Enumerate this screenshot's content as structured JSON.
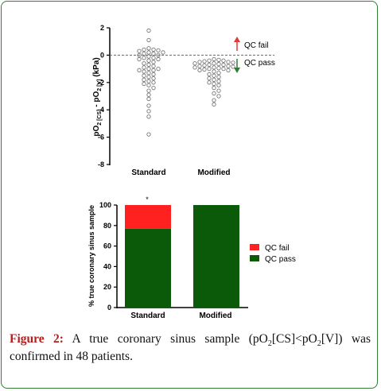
{
  "colors": {
    "frame_border": "#2e7d32",
    "qc_fail": "#ff2020",
    "qc_pass": "#0a5a0a",
    "arrow_up": "#e53935",
    "arrow_down": "#2e7d32",
    "figure_label": "#b71c1c"
  },
  "caption": {
    "label": "Figure 2:",
    "text_1": "A true coronary sinus sample (pO",
    "sub_1": "2",
    "text_2": "[CS]<pO",
    "sub_2": "2",
    "text_3": "[V]) was confirmed in 48 patients."
  },
  "chart_data": [
    {
      "type": "scatter",
      "ylabel": {
        "main_1": "pO",
        "sub_1": "2 [CS]",
        "main_2": " - pO",
        "sub_2": "2 [V]",
        "main_3": " (kPa)"
      },
      "ylim": [
        -8,
        2
      ],
      "yticks": [
        "2",
        "0",
        "-2",
        "-4",
        "-6",
        "-8"
      ],
      "categories": [
        "Standard",
        "Modified"
      ],
      "reference_line": {
        "y": 0,
        "style": "dashed"
      },
      "annotations": {
        "above": "QC fail",
        "below": "QC pass"
      },
      "series": [
        {
          "category": "Standard",
          "values": [
            1.8,
            1.1,
            0.5,
            0.4,
            0.4,
            0.35,
            0.3,
            0.2,
            0.2,
            0.1,
            0.1,
            0.0,
            0.0,
            -0.1,
            -0.2,
            -0.2,
            -0.3,
            -0.3,
            -0.4,
            -0.5,
            -0.6,
            -0.7,
            -0.8,
            -0.9,
            -1.0,
            -1.0,
            -1.1,
            -1.1,
            -1.2,
            -1.3,
            -1.4,
            -1.5,
            -1.6,
            -1.7,
            -1.8,
            -1.9,
            -2.0,
            -2.1,
            -2.2,
            -2.4,
            -2.6,
            -2.9,
            -3.2,
            -3.7,
            -4.1,
            -4.5,
            -5.8
          ]
        },
        {
          "category": "Modified",
          "values": [
            -0.3,
            -0.35,
            -0.4,
            -0.4,
            -0.45,
            -0.5,
            -0.5,
            -0.55,
            -0.6,
            -0.6,
            -0.65,
            -0.7,
            -0.7,
            -0.75,
            -0.8,
            -0.8,
            -0.85,
            -0.9,
            -0.9,
            -0.95,
            -1.0,
            -1.0,
            -1.05,
            -1.1,
            -1.1,
            -1.2,
            -1.3,
            -1.4,
            -1.5,
            -1.6,
            -1.7,
            -1.8,
            -1.9,
            -2.0,
            -2.1,
            -2.2,
            -2.4,
            -2.6,
            -2.8,
            -3.0,
            -3.3,
            -3.6
          ]
        }
      ]
    },
    {
      "type": "bar",
      "stacked": true,
      "ylabel": "% true coronary sinus sample",
      "ylim": [
        0,
        100
      ],
      "yticks": [
        "100",
        "80",
        "60",
        "40",
        "20",
        "0"
      ],
      "categories": [
        "Standard",
        "Modified"
      ],
      "significance_marker": "*",
      "series": [
        {
          "name": "QC pass",
          "values": [
            77,
            100
          ]
        },
        {
          "name": "QC fail",
          "values": [
            23,
            0
          ]
        }
      ],
      "legend": {
        "position": "right",
        "items": [
          "QC fail",
          "QC pass"
        ]
      }
    }
  ]
}
